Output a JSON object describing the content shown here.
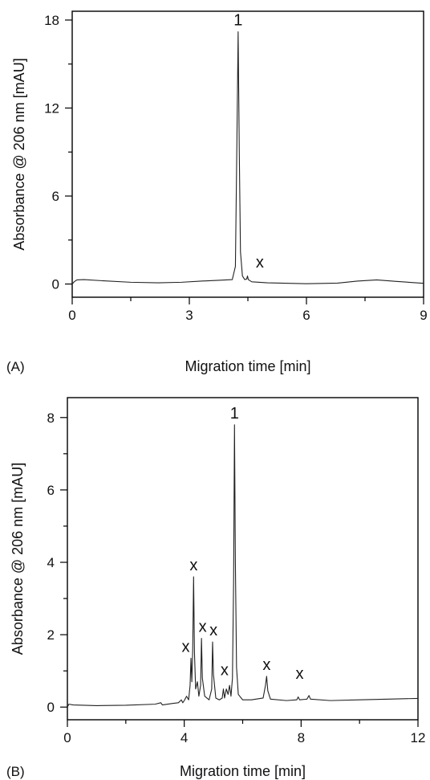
{
  "chart_data": [
    {
      "type": "line",
      "panel_label": "(A)",
      "xlabel": "Migration time [min]",
      "ylabel": "Absorbance @ 206 nm [mAU]",
      "xlim": [
        0,
        9
      ],
      "ylim": [
        -0.9,
        18.6
      ],
      "x_ticks": [
        0,
        3,
        6,
        9
      ],
      "y_ticks": [
        0,
        6,
        12,
        18
      ],
      "grid": false,
      "legend": "none",
      "series": [
        {
          "points": [
            [
              0,
              0
            ],
            [
              0.05,
              0.15
            ],
            [
              0.12,
              0.28
            ],
            [
              0.3,
              0.3
            ],
            [
              0.8,
              0.22
            ],
            [
              1.5,
              0.12
            ],
            [
              2.2,
              0.08
            ],
            [
              2.8,
              0.12
            ],
            [
              3.3,
              0.2
            ],
            [
              3.8,
              0.26
            ],
            [
              4.1,
              0.3
            ],
            [
              4.18,
              1.2
            ],
            [
              4.22,
              10.0
            ],
            [
              4.25,
              17.2
            ],
            [
              4.28,
              9.0
            ],
            [
              4.31,
              2.2
            ],
            [
              4.36,
              0.55
            ],
            [
              4.42,
              0.3
            ],
            [
              4.47,
              0.35
            ],
            [
              4.49,
              0.55
            ],
            [
              4.51,
              0.3
            ],
            [
              4.6,
              0.15
            ],
            [
              5.0,
              0.08
            ],
            [
              6.0,
              0.02
            ],
            [
              6.8,
              0.06
            ],
            [
              7.3,
              0.2
            ],
            [
              7.8,
              0.28
            ],
            [
              8.3,
              0.18
            ],
            [
              9.0,
              0.05
            ]
          ]
        }
      ],
      "annotations": [
        {
          "text": "1",
          "x": 4.25,
          "y": 17.2
        },
        {
          "text": "x",
          "x": 4.6,
          "y": 0.8
        }
      ]
    },
    {
      "type": "line",
      "panel_label": "(B)",
      "xlabel": "Migration time [min]",
      "ylabel": "Absorbance @ 206 nm [mAU]",
      "xlim": [
        0,
        12
      ],
      "ylim": [
        -0.35,
        8.55
      ],
      "x_ticks": [
        0,
        4,
        8,
        12
      ],
      "y_ticks": [
        0,
        2,
        4,
        6,
        8
      ],
      "grid": false,
      "legend": "none",
      "series": [
        {
          "points": [
            [
              0,
              0
            ],
            [
              0.05,
              0.08
            ],
            [
              0.2,
              0.06
            ],
            [
              1.0,
              0.04
            ],
            [
              2.0,
              0.05
            ],
            [
              3.0,
              0.08
            ],
            [
              3.2,
              0.12
            ],
            [
              3.25,
              0.06
            ],
            [
              3.6,
              0.1
            ],
            [
              3.8,
              0.12
            ],
            [
              3.9,
              0.2
            ],
            [
              3.95,
              0.12
            ],
            [
              4.0,
              0.18
            ],
            [
              4.08,
              0.3
            ],
            [
              4.15,
              0.2
            ],
            [
              4.2,
              0.6
            ],
            [
              4.23,
              1.35
            ],
            [
              4.26,
              0.7
            ],
            [
              4.29,
              1.6
            ],
            [
              4.32,
              3.6
            ],
            [
              4.35,
              1.5
            ],
            [
              4.39,
              0.5
            ],
            [
              4.45,
              0.7
            ],
            [
              4.5,
              0.3
            ],
            [
              4.56,
              0.6
            ],
            [
              4.59,
              1.9
            ],
            [
              4.62,
              0.8
            ],
            [
              4.7,
              0.3
            ],
            [
              4.85,
              0.2
            ],
            [
              4.94,
              0.5
            ],
            [
              4.97,
              1.8
            ],
            [
              5.0,
              0.9
            ],
            [
              5.08,
              0.25
            ],
            [
              5.2,
              0.2
            ],
            [
              5.3,
              0.25
            ],
            [
              5.34,
              0.5
            ],
            [
              5.38,
              0.25
            ],
            [
              5.44,
              0.5
            ],
            [
              5.5,
              0.35
            ],
            [
              5.55,
              0.6
            ],
            [
              5.6,
              0.3
            ],
            [
              5.65,
              0.8
            ],
            [
              5.69,
              3.5
            ],
            [
              5.72,
              7.8
            ],
            [
              5.75,
              4.0
            ],
            [
              5.79,
              1.1
            ],
            [
              5.85,
              0.35
            ],
            [
              6.0,
              0.2
            ],
            [
              6.3,
              0.2
            ],
            [
              6.7,
              0.25
            ],
            [
              6.78,
              0.6
            ],
            [
              6.82,
              0.85
            ],
            [
              6.86,
              0.45
            ],
            [
              6.95,
              0.22
            ],
            [
              7.5,
              0.18
            ],
            [
              7.85,
              0.2
            ],
            [
              7.9,
              0.28
            ],
            [
              7.95,
              0.2
            ],
            [
              8.2,
              0.22
            ],
            [
              8.27,
              0.32
            ],
            [
              8.32,
              0.22
            ],
            [
              9.0,
              0.18
            ],
            [
              10.0,
              0.2
            ],
            [
              11.0,
              0.22
            ],
            [
              12.0,
              0.24
            ]
          ]
        }
      ],
      "annotations": [
        {
          "text": "1",
          "x": 5.72,
          "y": 7.8
        },
        {
          "text": "x",
          "x": 4.32,
          "y": 3.6
        },
        {
          "text": "x",
          "x": 4.05,
          "y": 1.35
        },
        {
          "text": "x",
          "x": 4.63,
          "y": 1.9
        },
        {
          "text": "x",
          "x": 5.0,
          "y": 1.8
        },
        {
          "text": "x",
          "x": 5.38,
          "y": 0.7
        },
        {
          "text": "x",
          "x": 6.82,
          "y": 0.85
        },
        {
          "text": "x",
          "x": 7.95,
          "y": 0.6
        }
      ]
    }
  ]
}
